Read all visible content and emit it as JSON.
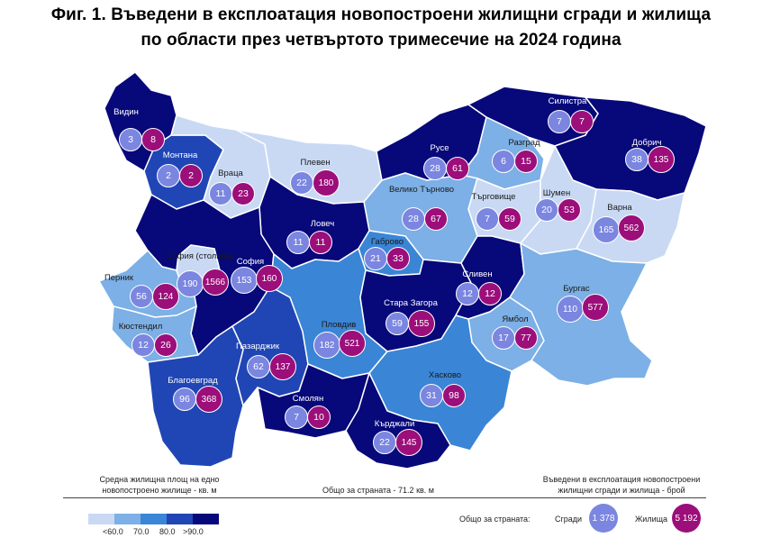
{
  "title_line1": "Фиг. 1. Въведени в експлоатация новопостроени жилищни сгради и жилища",
  "title_line2": "по области през четвъртото тримесечие на 2024 година",
  "colors": {
    "c1": "#c9d9f4",
    "c2": "#7cb0e6",
    "c3": "#3a85d6",
    "c4": "#2046b5",
    "c5": "#07087a",
    "buildings": "#7b86e0",
    "dwellings": "#9c0e7a"
  },
  "regions": [
    {
      "name": "Видин",
      "buildings": "3",
      "dwellings": "8",
      "class": 5
    },
    {
      "name": "Монтана",
      "buildings": "2",
      "dwellings": "2",
      "class": 4
    },
    {
      "name": "Враца",
      "buildings": "11",
      "dwellings": "23",
      "class": 1
    },
    {
      "name": "Плевен",
      "buildings": "22",
      "dwellings": "180",
      "class": 1
    },
    {
      "name": "Русе",
      "buildings": "28",
      "dwellings": "61",
      "class": 5
    },
    {
      "name": "Разград",
      "buildings": "6",
      "dwellings": "15",
      "class": 2
    },
    {
      "name": "Силистра",
      "buildings": "7",
      "dwellings": "7",
      "class": 5
    },
    {
      "name": "Добрич",
      "buildings": "38",
      "dwellings": "135",
      "class": 5
    },
    {
      "name": "Велико Търново",
      "buildings": "28",
      "dwellings": "67",
      "class": 2
    },
    {
      "name": "Търговище",
      "buildings": "7",
      "dwellings": "59",
      "class": 1
    },
    {
      "name": "Шумен",
      "buildings": "20",
      "dwellings": "53",
      "class": 1
    },
    {
      "name": "Варна",
      "buildings": "165",
      "dwellings": "562",
      "class": 1
    },
    {
      "name": "Ловеч",
      "buildings": "11",
      "dwellings": "11",
      "class": 5
    },
    {
      "name": "Габрово",
      "buildings": "21",
      "dwellings": "33",
      "class": 3
    },
    {
      "name": "София (столица)",
      "buildings": "190",
      "dwellings": "1566",
      "class": 1
    },
    {
      "name": "София",
      "buildings": "153",
      "dwellings": "160",
      "class": 5
    },
    {
      "name": "Перник",
      "buildings": "56",
      "dwellings": "124",
      "class": 2
    },
    {
      "name": "Кюстендил",
      "buildings": "12",
      "dwellings": "26",
      "class": 2
    },
    {
      "name": "Сливен",
      "buildings": "12",
      "dwellings": "12",
      "class": 5
    },
    {
      "name": "Стара Загора",
      "buildings": "59",
      "dwellings": "155",
      "class": 5
    },
    {
      "name": "Бургас",
      "buildings": "110",
      "dwellings": "577",
      "class": 2
    },
    {
      "name": "Ямбол",
      "buildings": "17",
      "dwellings": "77",
      "class": 2
    },
    {
      "name": "Пловдив",
      "buildings": "182",
      "dwellings": "521",
      "class": 3
    },
    {
      "name": "Пазарджик",
      "buildings": "62",
      "dwellings": "137",
      "class": 4
    },
    {
      "name": "Благоевград",
      "buildings": "96",
      "dwellings": "368",
      "class": 4
    },
    {
      "name": "Хасково",
      "buildings": "31",
      "dwellings": "98",
      "class": 3
    },
    {
      "name": "Смолян",
      "buildings": "7",
      "dwellings": "10",
      "class": 5
    },
    {
      "name": "Кърджали",
      "buildings": "22",
      "dwellings": "145",
      "class": 5
    }
  ],
  "legend": {
    "left_line1": "Средна жилищна площ на едно",
    "left_line2": "новопостроено жилище - кв. м",
    "center": "Общо за страната - 71.2 кв. м",
    "right_line1": "Въведени в експлоатация новопостроени",
    "right_line2": "жилищни сгради и жилища - брой",
    "scale_ticks": [
      "<60.0",
      "70.0",
      "80.0",
      ">90.0"
    ],
    "total_label": "Общо за страната:",
    "buildings_label": "Сгради",
    "buildings_total": "1 378",
    "dwellings_label": "Жилища",
    "dwellings_total": "5 192"
  }
}
